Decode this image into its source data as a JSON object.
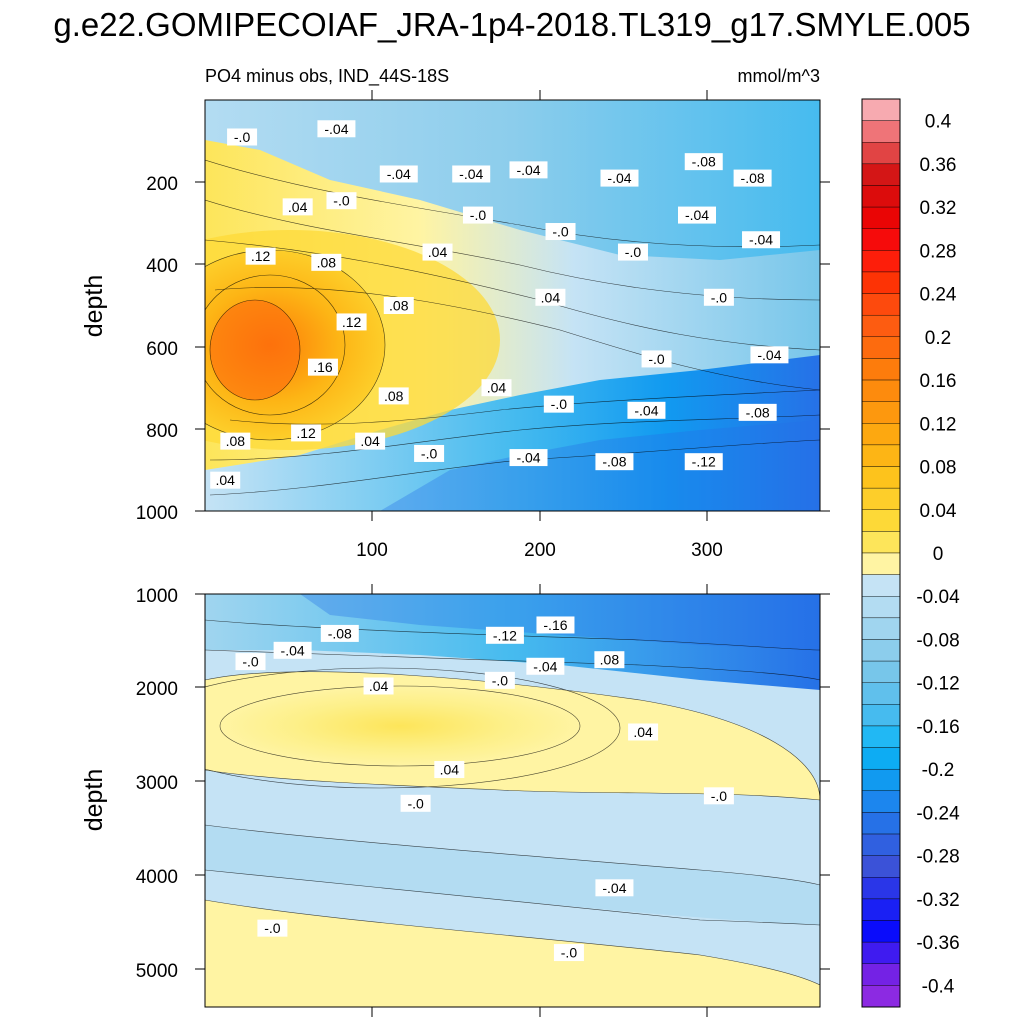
{
  "title": "g.e22.GOMIPECOIAF_JRA-1p4-2018.TL319_g17.SMYLE.005",
  "chart_data": {
    "type": "heatmap",
    "left_string": "PO4 minus obs, IND_44S-18S",
    "right_string": "mmol/m^3",
    "panels": [
      {
        "name": "upper",
        "ylabel": "depth",
        "xlim": [
          0,
          365
        ],
        "ylim": [
          0,
          1000
        ],
        "y_reversed": true,
        "xticks": [
          100,
          200,
          300
        ],
        "yticks": [
          200,
          400,
          600,
          800,
          1000
        ],
        "contour_labels": [
          {
            "text": "-.0",
            "x": 22,
            "depth": 90
          },
          {
            "text": "-.04",
            "x": 78,
            "depth": 70
          },
          {
            "text": "-.04",
            "x": 115,
            "depth": 180
          },
          {
            "text": "-.04",
            "x": 158,
            "depth": 180
          },
          {
            "text": "-.04",
            "x": 192,
            "depth": 170
          },
          {
            "text": "-.04",
            "x": 246,
            "depth": 190
          },
          {
            "text": "-.08",
            "x": 296,
            "depth": 150
          },
          {
            "text": "-.08",
            "x": 325,
            "depth": 190
          },
          {
            "text": "-.04",
            "x": 292,
            "depth": 280
          },
          {
            "text": "-.04",
            "x": 330,
            "depth": 340
          },
          {
            "text": ".04",
            "x": 55,
            "depth": 260
          },
          {
            "text": "-.0",
            "x": 81,
            "depth": 245
          },
          {
            "text": "-.0",
            "x": 162,
            "depth": 280
          },
          {
            "text": "-.0",
            "x": 211,
            "depth": 320
          },
          {
            "text": "-.0",
            "x": 254,
            "depth": 370
          },
          {
            "text": "-.0",
            "x": 305,
            "depth": 480
          },
          {
            "text": "-.0",
            "x": 268,
            "depth": 630
          },
          {
            "text": "-.04",
            "x": 335,
            "depth": 620
          },
          {
            "text": ".12",
            "x": 33,
            "depth": 380
          },
          {
            "text": ".08",
            "x": 72,
            "depth": 395
          },
          {
            "text": ".04",
            "x": 138,
            "depth": 370
          },
          {
            "text": ".08",
            "x": 115,
            "depth": 500
          },
          {
            "text": ".12",
            "x": 87,
            "depth": 540
          },
          {
            "text": ".04",
            "x": 205,
            "depth": 480
          },
          {
            "text": ".16",
            "x": 70,
            "depth": 650
          },
          {
            "text": ".08",
            "x": 112,
            "depth": 720
          },
          {
            "text": ".04",
            "x": 173,
            "depth": 700
          },
          {
            "text": "-.0",
            "x": 210,
            "depth": 740
          },
          {
            "text": "-.04",
            "x": 262,
            "depth": 755
          },
          {
            "text": "-.08",
            "x": 328,
            "depth": 760
          },
          {
            "text": ".08",
            "x": 18,
            "depth": 830
          },
          {
            "text": ".12",
            "x": 60,
            "depth": 810
          },
          {
            "text": ".04",
            "x": 98,
            "depth": 830
          },
          {
            "text": "-.0",
            "x": 133,
            "depth": 860
          },
          {
            "text": "-.04",
            "x": 192,
            "depth": 870
          },
          {
            "text": "-.08",
            "x": 243,
            "depth": 880
          },
          {
            "text": "-.12",
            "x": 296,
            "depth": 880
          },
          {
            "text": ".04",
            "x": 12,
            "depth": 925
          }
        ]
      },
      {
        "name": "lower",
        "ylabel": "depth",
        "xlim": [
          0,
          365
        ],
        "ylim": [
          1000,
          5400
        ],
        "y_reversed": true,
        "yticks": [
          1000,
          2000,
          3000,
          4000,
          5000
        ],
        "contour_labels": [
          {
            "text": "-.08",
            "x": 80,
            "depth": 1420
          },
          {
            "text": "-.04",
            "x": 52,
            "depth": 1600
          },
          {
            "text": "-.0",
            "x": 27,
            "depth": 1720
          },
          {
            "text": "-.12",
            "x": 178,
            "depth": 1440
          },
          {
            "text": "-.16",
            "x": 208,
            "depth": 1330
          },
          {
            "text": "-.04",
            "x": 202,
            "depth": 1770
          },
          {
            "text": ".08",
            "x": 240,
            "depth": 1700
          },
          {
            "text": "-.0",
            "x": 175,
            "depth": 1920
          },
          {
            "text": ".04",
            "x": 103,
            "depth": 1980
          },
          {
            "text": ".04",
            "x": 260,
            "depth": 2470
          },
          {
            "text": ".04",
            "x": 145,
            "depth": 2870
          },
          {
            "text": "-.0",
            "x": 125,
            "depth": 3230
          },
          {
            "text": "-.0",
            "x": 305,
            "depth": 3150
          },
          {
            "text": "-.04",
            "x": 243,
            "depth": 4130
          },
          {
            "text": "-.0",
            "x": 40,
            "depth": 4560
          },
          {
            "text": "-.0",
            "x": 216,
            "depth": 4820
          }
        ]
      }
    ],
    "colorbar": {
      "units": "mmol/m^3",
      "levels": [
        -0.4,
        -0.38,
        -0.36,
        -0.34,
        -0.32,
        -0.3,
        -0.28,
        -0.26,
        -0.24,
        -0.22,
        -0.2,
        -0.18,
        -0.16,
        -0.14,
        -0.12,
        -0.1,
        -0.08,
        -0.06,
        -0.04,
        -0.02,
        0,
        0.02,
        0.04,
        0.06,
        0.08,
        0.1,
        0.12,
        0.14,
        0.16,
        0.18,
        0.2,
        0.22,
        0.24,
        0.26,
        0.28,
        0.3,
        0.32,
        0.34,
        0.36,
        0.38,
        0.4
      ],
      "tick_labels": [
        "0.4",
        "0.36",
        "0.32",
        "0.28",
        "0.24",
        "0.2",
        "0.16",
        "0.12",
        "0.08",
        "0.04",
        "0",
        "-0.04",
        "-0.08",
        "-0.12",
        "-0.16",
        "-0.2",
        "-0.24",
        "-0.28",
        "-0.32",
        "-0.36",
        "-0.4"
      ],
      "colors_top_to_bottom": [
        "#f7aab0",
        "#ef7478",
        "#e14444",
        "#d41616",
        "#dc0c0c",
        "#ea0505",
        "#f60b0b",
        "#fd1e0a",
        "#fd3305",
        "#fd4a0d",
        "#fd5c11",
        "#fd6b0e",
        "#fd7c0c",
        "#fd8b0d",
        "#fd980e",
        "#fda810",
        "#fdb515",
        "#fdc31c",
        "#fdce2a",
        "#fdd937",
        "#fde55a",
        "#fff4a3",
        "#c5e3f5",
        "#b3dcf2",
        "#a0d5ef",
        "#8ccdec",
        "#77c6ea",
        "#60c0ec",
        "#46bbef",
        "#21b8f4",
        "#0dacf3",
        "#119af0",
        "#1c86ee",
        "#2671e7",
        "#3060e0",
        "#3b52d8",
        "#2a36e8",
        "#1a20f4",
        "#0a0cfb",
        "#3f1bf0",
        "#7422e5",
        "#8c2ae2"
      ]
    }
  }
}
